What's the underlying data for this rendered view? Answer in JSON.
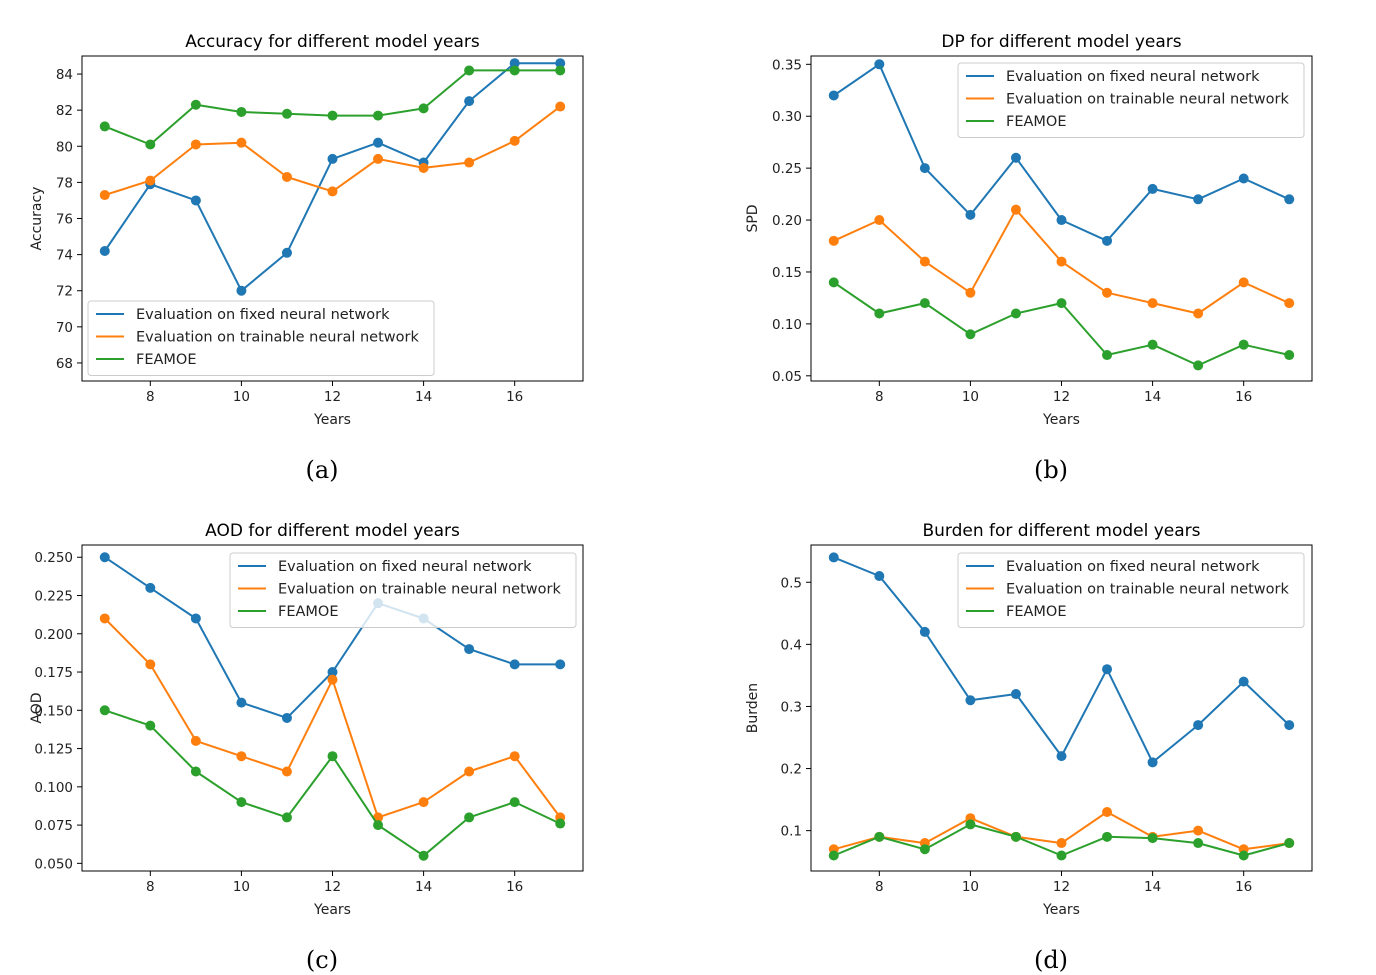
{
  "colors": {
    "fixed": "#1f77b4",
    "trainable": "#ff7f0e",
    "feamoe": "#2ca02c"
  },
  "chart_data": [
    {
      "type": "line",
      "caption": "(a)",
      "title": "Accuracy for different model years",
      "xlabel": "Years",
      "ylabel": "Accuracy",
      "legend": "lower-left",
      "x": [
        7,
        8,
        9,
        10,
        11,
        12,
        13,
        14,
        15,
        16,
        17
      ],
      "xlim": [
        6.5,
        17.5
      ],
      "ylim": [
        67.0,
        85.0
      ],
      "xticks": [
        8,
        10,
        12,
        14,
        16
      ],
      "yticks": [
        68,
        70,
        72,
        74,
        76,
        78,
        80,
        82,
        84
      ],
      "ytick_labels": [
        "68",
        "70",
        "72",
        "74",
        "76",
        "78",
        "80",
        "82",
        "84"
      ],
      "series": [
        {
          "name": "Evaluation on fixed neural network",
          "color_key": "fixed",
          "values": [
            74.2,
            77.9,
            77.0,
            72.0,
            74.1,
            79.3,
            80.2,
            79.1,
            82.5,
            84.6,
            84.6
          ]
        },
        {
          "name": "Evaluation on trainable neural network",
          "color_key": "trainable",
          "values": [
            77.3,
            78.1,
            80.1,
            80.2,
            78.3,
            77.5,
            79.3,
            78.8,
            79.1,
            80.3,
            82.2
          ]
        },
        {
          "name": "FEAMOE",
          "color_key": "feamoe",
          "values": [
            81.1,
            80.1,
            82.3,
            81.9,
            81.8,
            81.7,
            81.7,
            82.1,
            84.2,
            84.2,
            84.2
          ]
        }
      ]
    },
    {
      "type": "line",
      "caption": "(b)",
      "title": "DP for different model years",
      "xlabel": "Years",
      "ylabel": "SPD",
      "legend": "upper-right",
      "x": [
        7,
        8,
        9,
        10,
        11,
        12,
        13,
        14,
        15,
        16,
        17
      ],
      "xlim": [
        6.5,
        17.5
      ],
      "ylim": [
        0.045,
        0.358
      ],
      "xticks": [
        8,
        10,
        12,
        14,
        16
      ],
      "yticks": [
        0.05,
        0.1,
        0.15,
        0.2,
        0.25,
        0.3,
        0.35
      ],
      "ytick_labels": [
        "0.05",
        "0.10",
        "0.15",
        "0.20",
        "0.25",
        "0.30",
        "0.35"
      ],
      "series": [
        {
          "name": "Evaluation on fixed neural network",
          "color_key": "fixed",
          "values": [
            0.32,
            0.35,
            0.25,
            0.205,
            0.26,
            0.2,
            0.18,
            0.23,
            0.22,
            0.24,
            0.22
          ]
        },
        {
          "name": "Evaluation on trainable neural network",
          "color_key": "trainable",
          "values": [
            0.18,
            0.2,
            0.16,
            0.13,
            0.21,
            0.16,
            0.13,
            0.12,
            0.11,
            0.14,
            0.12
          ]
        },
        {
          "name": "FEAMOE",
          "color_key": "feamoe",
          "values": [
            0.14,
            0.11,
            0.12,
            0.09,
            0.11,
            0.12,
            0.07,
            0.08,
            0.06,
            0.08,
            0.07
          ]
        }
      ]
    },
    {
      "type": "line",
      "caption": "(c)",
      "title": "AOD for different model years",
      "xlabel": "Years",
      "ylabel": "AOD",
      "legend": "upper-right",
      "x": [
        7,
        8,
        9,
        10,
        11,
        12,
        13,
        14,
        15,
        16,
        17
      ],
      "xlim": [
        6.5,
        17.5
      ],
      "ylim": [
        0.045,
        0.258
      ],
      "xticks": [
        8,
        10,
        12,
        14,
        16
      ],
      "yticks": [
        0.05,
        0.075,
        0.1,
        0.125,
        0.15,
        0.175,
        0.2,
        0.225,
        0.25
      ],
      "ytick_labels": [
        "0.050",
        "0.075",
        "0.100",
        "0.125",
        "0.150",
        "0.175",
        "0.200",
        "0.225",
        "0.250"
      ],
      "series": [
        {
          "name": "Evaluation on fixed neural network",
          "color_key": "fixed",
          "values": [
            0.25,
            0.23,
            0.21,
            0.155,
            0.145,
            0.175,
            0.22,
            0.21,
            0.19,
            0.18,
            0.18
          ]
        },
        {
          "name": "Evaluation on trainable neural network",
          "color_key": "trainable",
          "values": [
            0.21,
            0.18,
            0.13,
            0.12,
            0.11,
            0.17,
            0.08,
            0.09,
            0.11,
            0.12,
            0.08
          ]
        },
        {
          "name": "FEAMOE",
          "color_key": "feamoe",
          "values": [
            0.15,
            0.14,
            0.11,
            0.09,
            0.08,
            0.12,
            0.075,
            0.055,
            0.08,
            0.09,
            0.076
          ]
        }
      ]
    },
    {
      "type": "line",
      "caption": "(d)",
      "title": "Burden for different model years",
      "xlabel": "Years",
      "ylabel": "Burden",
      "legend": "upper-right",
      "x": [
        7,
        8,
        9,
        10,
        11,
        12,
        13,
        14,
        15,
        16,
        17
      ],
      "xlim": [
        6.5,
        17.5
      ],
      "ylim": [
        0.035,
        0.56
      ],
      "xticks": [
        8,
        10,
        12,
        14,
        16
      ],
      "yticks": [
        0.1,
        0.2,
        0.3,
        0.4,
        0.5
      ],
      "ytick_labels": [
        "0.1",
        "0.2",
        "0.3",
        "0.4",
        "0.5"
      ],
      "series": [
        {
          "name": "Evaluation on fixed neural network",
          "color_key": "fixed",
          "values": [
            0.54,
            0.51,
            0.42,
            0.31,
            0.32,
            0.22,
            0.36,
            0.21,
            0.27,
            0.34,
            0.27
          ]
        },
        {
          "name": "Evaluation on trainable neural network",
          "color_key": "trainable",
          "values": [
            0.07,
            0.09,
            0.08,
            0.12,
            0.09,
            0.08,
            0.13,
            0.09,
            0.1,
            0.07,
            0.08
          ]
        },
        {
          "name": "FEAMOE",
          "color_key": "feamoe",
          "values": [
            0.06,
            0.09,
            0.07,
            0.11,
            0.09,
            0.06,
            0.09,
            0.088,
            0.08,
            0.06,
            0.08
          ]
        }
      ]
    }
  ]
}
